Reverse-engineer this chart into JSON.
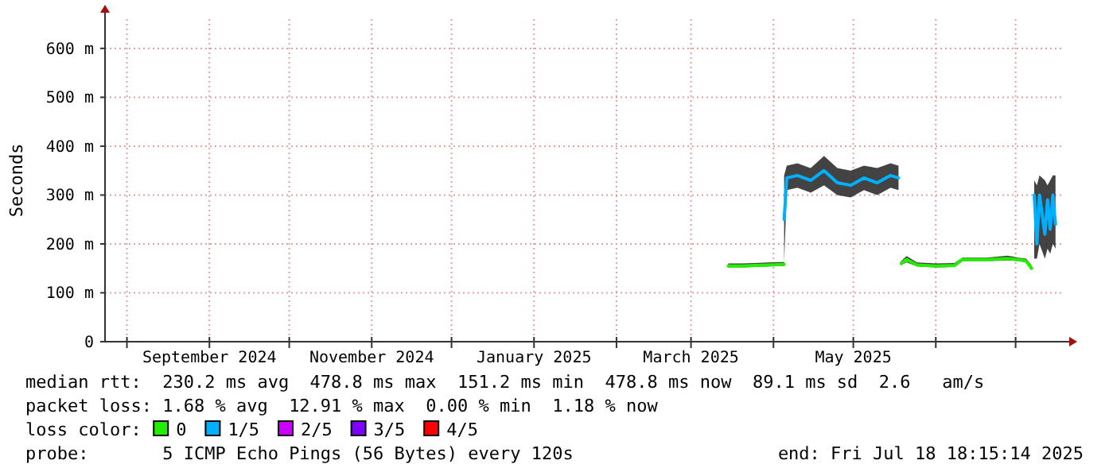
{
  "chart_data": {
    "type": "line",
    "ylabel": "Seconds",
    "legend_title": "loss color:",
    "legend": "bottom",
    "grid": true,
    "marker": "none",
    "line_style": "solid",
    "xlim": [
      "2024-07-23T18:15",
      "2025-07-18T18:15"
    ],
    "xticks": [
      {
        "value": "2024-08-01",
        "label": null
      },
      {
        "value": "2024-09-01",
        "label": "September 2024"
      },
      {
        "value": "2024-10-01",
        "label": null
      },
      {
        "value": "2024-11-01",
        "label": "November 2024"
      },
      {
        "value": "2024-12-01",
        "label": null
      },
      {
        "value": "2025-01-01",
        "label": "January 2025"
      },
      {
        "value": "2025-02-01",
        "label": null
      },
      {
        "value": "2025-03-01",
        "label": "March 2025"
      },
      {
        "value": "2025-04-01",
        "label": null
      },
      {
        "value": "2025-05-01",
        "label": "May 2025"
      },
      {
        "value": "2025-06-01",
        "label": null
      },
      {
        "value": "2025-07-01",
        "label": null
      }
    ],
    "ylim": [
      0,
      660
    ],
    "yticks": [
      0,
      {
        "value": 100,
        "label": "100 m"
      },
      {
        "value": 200,
        "label": "200 m"
      },
      {
        "value": 300,
        "label": "300 m"
      },
      {
        "value": 400,
        "label": "400 m"
      },
      {
        "value": 500,
        "label": "500 m"
      },
      {
        "value": 600,
        "label": "600 m"
      }
    ],
    "series": [
      {
        "name": "0",
        "color": "#22ee00",
        "x": [
          "2025-03-15",
          "2025-03-20",
          "2025-03-25",
          "2025-03-30",
          "2025-04-05",
          "2025-04-20",
          "2025-05-19",
          "2025-05-21",
          "2025-05-25",
          "2025-06-01",
          "2025-06-08",
          "2025-06-11",
          "2025-06-20",
          "2025-06-28",
          "2025-07-02",
          "2025-07-05",
          "2025-07-07"
        ],
        "values": [
          155,
          155,
          156,
          157,
          158,
          null,
          160,
          168,
          157,
          155,
          156,
          168,
          168,
          170,
          168,
          165,
          150
        ],
        "lower": [
          152,
          152,
          153,
          154,
          155,
          null,
          157,
          162,
          154,
          152,
          153,
          165,
          165,
          166,
          165,
          162,
          147
        ],
        "upper": [
          160,
          160,
          161,
          162,
          163,
          null,
          165,
          175,
          162,
          160,
          161,
          172,
          172,
          176,
          172,
          170,
          156
        ]
      },
      {
        "name": "1/5",
        "color": "#00b0ff",
        "x": [
          "2025-04-05",
          "2025-04-06",
          "2025-04-10",
          "2025-04-15",
          "2025-04-20",
          "2025-04-25",
          "2025-04-30",
          "2025-05-05",
          "2025-05-10",
          "2025-05-15",
          "2025-05-18",
          "2025-06-01",
          "2025-07-08",
          "2025-07-09",
          "2025-07-10",
          "2025-07-12",
          "2025-07-13",
          "2025-07-14",
          "2025-07-15",
          "2025-07-16"
        ],
        "values": [
          250,
          335,
          340,
          330,
          350,
          325,
          320,
          335,
          325,
          340,
          335,
          null,
          300,
          200,
          300,
          220,
          290,
          230,
          300,
          240
        ],
        "lower": [
          160,
          310,
          315,
          305,
          320,
          300,
          295,
          310,
          300,
          315,
          310,
          null,
          170,
          170,
          200,
          170,
          190,
          180,
          200,
          190
        ],
        "upper": [
          340,
          360,
          365,
          355,
          380,
          355,
          350,
          360,
          355,
          365,
          360,
          null,
          330,
          320,
          340,
          330,
          320,
          330,
          340,
          340
        ]
      },
      {
        "name": "2/5",
        "color": "#cc00ff"
      },
      {
        "name": "3/5",
        "color": "#7e00ff"
      },
      {
        "name": "4/5",
        "color": "#ff0000"
      }
    ],
    "annotations": [
      "median rtt:  230.2 ms avg  478.8 ms max  151.2 ms min  478.8 ms now  89.1 ms sd  2.6   am/s",
      "packet loss: 1.68 % avg  12.91 % max  0.00 % min  1.18 % now",
      "probe:       5 ICMP Echo Pings (56 Bytes) every 120s",
      "end: Fri Jul 18 18:15:14 2025"
    ]
  }
}
